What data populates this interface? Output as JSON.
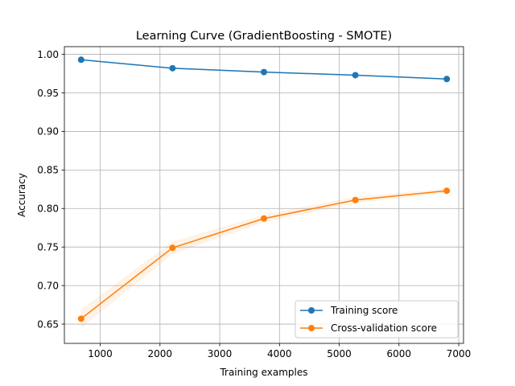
{
  "chart_data": {
    "type": "line",
    "title": "Learning Curve (GradientBoosting - SMOTE)",
    "xlabel": "Training examples",
    "ylabel": "Accuracy",
    "x": [
      680,
      2210,
      3740,
      5270,
      6800
    ],
    "xlim": [
      400,
      7080
    ],
    "ylim": [
      0.625,
      1.01
    ],
    "xticks": [
      1000,
      2000,
      3000,
      4000,
      5000,
      6000,
      7000
    ],
    "yticks": [
      0.65,
      0.7,
      0.75,
      0.8,
      0.85,
      0.9,
      0.95,
      1.0
    ],
    "xtick_labels": [
      "1000",
      "2000",
      "3000",
      "4000",
      "5000",
      "6000",
      "7000"
    ],
    "ytick_labels": [
      "0.65",
      "0.70",
      "0.75",
      "0.80",
      "0.85",
      "0.90",
      "0.95",
      "1.00"
    ],
    "grid": true,
    "legend_position": "lower-right",
    "series": [
      {
        "name": "Training score",
        "color": "#1f77b4",
        "values": [
          0.993,
          0.982,
          0.977,
          0.973,
          0.968
        ],
        "band": [
          0.001,
          0.001,
          0.001,
          0.001,
          0.001
        ]
      },
      {
        "name": "Cross-validation score",
        "color": "#ff7f0e",
        "values": [
          0.657,
          0.749,
          0.787,
          0.811,
          0.823
        ],
        "band": [
          0.012,
          0.008,
          0.005,
          0.004,
          0.003
        ]
      }
    ]
  }
}
